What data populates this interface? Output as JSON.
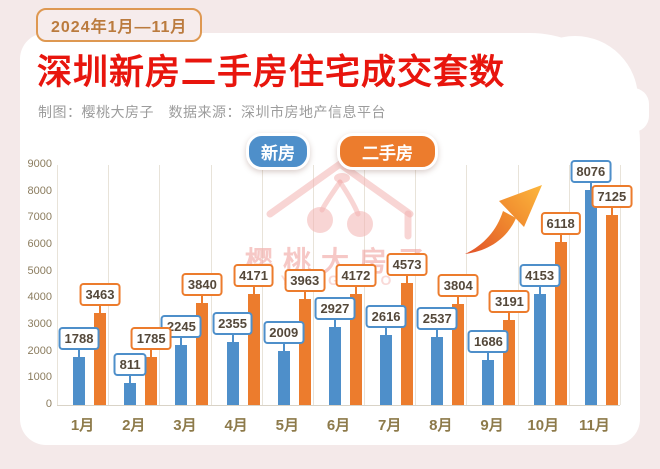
{
  "badge": "2024年1月—11月",
  "title": "深圳新房二手房住宅成交套数",
  "credits": "制图：樱桃大房子　数据来源：深圳市房地产信息平台",
  "watermark": {
    "text": "樱桃大房子",
    "subtext": "YINGTAO"
  },
  "legend": [
    {
      "label": "新房",
      "color": "#4e8fca"
    },
    {
      "label": "二手房",
      "color": "#ec7c2d"
    }
  ],
  "colors": {
    "page_bg": "#f4e9e9",
    "card_bg": "#ffffff",
    "title_red": "#e8150d",
    "badge_text": "#bb7b3e",
    "badge_border": "#de9851",
    "credits_gray": "#9c9c9c",
    "blue": "#4e8fca",
    "orange": "#ec7c2d",
    "value_label_text": "#54483a",
    "month_label": "#8d7a4a",
    "ytick_label": "#8b7c5e",
    "gridline": "#e8e3d9",
    "watermark_pink": "#f0a4a0",
    "arrow_gradient": [
      "#e1512a",
      "#fcb53c"
    ]
  },
  "chart_data": {
    "type": "bar",
    "title": "深圳新房二手房住宅成交套数",
    "xlabel": "",
    "ylabel": "",
    "categories": [
      "1月",
      "2月",
      "3月",
      "4月",
      "5月",
      "6月",
      "7月",
      "8月",
      "9月",
      "10月",
      "11月"
    ],
    "series": [
      {
        "name": "新房",
        "key": "new-homes",
        "color": "#4e8fca",
        "values": [
          1788,
          811,
          2245,
          2355,
          2009,
          2927,
          2616,
          2537,
          1686,
          4153,
          8076
        ]
      },
      {
        "name": "二手房",
        "key": "second-hand",
        "color": "#ec7c2d",
        "values": [
          3463,
          1785,
          3840,
          4171,
          3963,
          4172,
          4573,
          3804,
          3191,
          6118,
          7125
        ]
      }
    ],
    "ylim": [
      0,
      9000
    ],
    "yticks": [
      0,
      1000,
      2000,
      3000,
      4000,
      5000,
      6000,
      7000,
      8000,
      9000
    ],
    "grid": "vertical",
    "legend_position": "top-center",
    "data_labels": true,
    "annotation": "orange-up-arrow-between-9月-and-11月"
  }
}
